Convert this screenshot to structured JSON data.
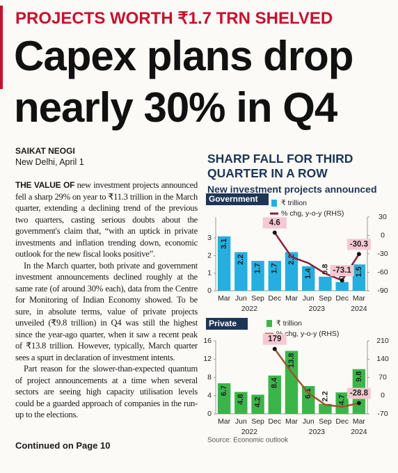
{
  "header": {
    "kicker": "PROJECTS WORTH ₹1.7 TRN SHELVED",
    "headline": [
      "Capex plans drop",
      "nearly 30% in Q4"
    ]
  },
  "byline": {
    "author": "SAIKAT NEOGI",
    "dateline": "New Delhi, April 1"
  },
  "body": {
    "lead": "THE VALUE OF",
    "paragraphs": [
      "new investment projects announced fell a sharp 29% on year to ₹11.3 trillion in the March quarter, extending a declining trend of the previous two quarters, casting serious doubts about the government's claim that, “with an uptick in private investments and inflation trending down, economic outlook for the new fiscal looks positive”.",
      "In the March quarter, both private and government investment announcements declined roughly at the same rate (of around 30% each), data from the Centre for Monitoring of Indian Economy showed. To be sure, in absolute terms, value of private projects unveiled (₹9.8 trillion) in Q4 was still the highest since the year-ago quarter, when it saw a recent peak of ₹13.8 trillion. However, typically, March quarter sees a spurt in declaration of investment intents.",
      "Part reason for the slower-than-expected quantum of project announcements at a time when several sectors are seeing high capacity utilisation levels could be a guarded approach of companies in the run-up to the elections."
    ],
    "continued": "Continued on Page 10"
  },
  "graphic": {
    "title": "SHARP FALL FOR THIRD QUARTER IN A ROW",
    "subtitle": "New investment projects announced",
    "source": "Source: Economic outlook"
  },
  "chart_data": [
    {
      "type": "bar",
      "label": "Government",
      "categories": [
        "Mar",
        "Jun",
        "Sep",
        "Dec",
        "Mar",
        "Jun",
        "Sep",
        "Dec",
        "Mar"
      ],
      "x_groups": [
        "2022",
        "2023",
        "2024"
      ],
      "series": [
        {
          "name": "₹ trillion",
          "color": "#27aee0",
          "values": [
            3.1,
            2.2,
            1.7,
            1.7,
            2.2,
            1.4,
            0.8,
            0.5,
            1.5
          ]
        },
        {
          "name": "% chg, y-o-y (RHS)",
          "type": "line",
          "axis": "y2",
          "color": "#8c1d3a",
          "values": [
            null,
            null,
            null,
            4.6,
            -35,
            -45,
            -62,
            -73.1,
            -30.3
          ],
          "value_labels": [
            null,
            null,
            null,
            "4.6",
            null,
            null,
            null,
            "-73.1",
            "-30.3"
          ]
        }
      ],
      "ylim": [
        0,
        4.2
      ],
      "yticks": [
        0,
        1,
        2,
        3
      ],
      "y2lim": [
        -90,
        30
      ],
      "y2ticks": [
        30,
        0,
        -30,
        -60,
        -90
      ]
    },
    {
      "type": "bar",
      "label": "Private",
      "categories": [
        "Mar",
        "Jun",
        "Sep",
        "Dec",
        "Mar",
        "Jun",
        "Sep",
        "Dec",
        "Mar"
      ],
      "x_groups": [
        "2022",
        "2023",
        "2024"
      ],
      "series": [
        {
          "name": "₹ trillion",
          "color": "#3bb54a",
          "values": [
            6.7,
            4.8,
            4.2,
            8.4,
            13.8,
            6.1,
            2.2,
            4.7,
            9.8
          ]
        },
        {
          "name": "% chg, y-o-y (RHS)",
          "type": "line",
          "axis": "y2",
          "color": "#a0522d",
          "values": [
            null,
            null,
            null,
            179,
            90,
            10,
            -35,
            -43,
            -28.8
          ],
          "value_labels": [
            null,
            null,
            null,
            "179",
            null,
            null,
            null,
            null,
            "-28.8"
          ]
        }
      ],
      "ylim": [
        0,
        16
      ],
      "yticks": [
        0,
        4,
        8,
        12,
        16
      ],
      "y2lim": [
        -70,
        210
      ],
      "y2ticks": [
        210,
        140,
        70,
        0,
        -70
      ]
    }
  ]
}
